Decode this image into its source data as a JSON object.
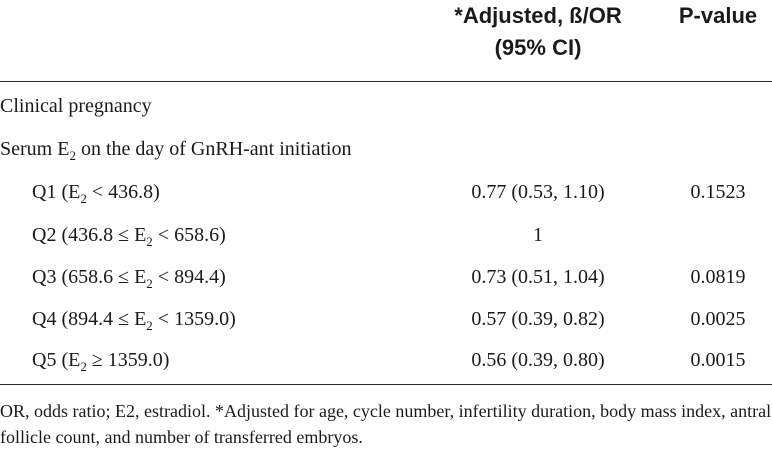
{
  "header": {
    "col_adjusted_line1": "*Adjusted, ß/OR",
    "col_adjusted_line2": "(95% CI)",
    "col_pvalue": "P-value"
  },
  "section": {
    "outcome": "Clinical pregnancy",
    "variable_prefix": "Serum E",
    "variable_sub": "2",
    "variable_suffix": " on the day of GnRH-ant initiation"
  },
  "rows": [
    {
      "pre": "Q1 (E",
      "sub": "2",
      "post": " < 436.8)",
      "or": "0.77 (0.53, 1.10)",
      "p": "0.1523"
    },
    {
      "pre": "Q2 (436.8 ≤ E",
      "sub": "2",
      "post": " < 658.6)",
      "or": "1",
      "p": ""
    },
    {
      "pre": "Q3 (658.6 ≤ E",
      "sub": "2",
      "post": " < 894.4)",
      "or": "0.73 (0.51, 1.04)",
      "p": "0.0819"
    },
    {
      "pre": "Q4 (894.4 ≤ E",
      "sub": "2",
      "post": " < 1359.0)",
      "or": "0.57 (0.39, 0.82)",
      "p": "0.0025"
    },
    {
      "pre": "Q5 (E",
      "sub": "2",
      "post": " ≥ 1359.0)",
      "or": "0.56 (0.39, 0.80)",
      "p": "0.0015"
    }
  ],
  "footnote": "OR, odds ratio; E2, estradiol. *Adjusted for age, cycle number, infertility duration, body mass index, antral follicle count, and number of transferred embryos."
}
